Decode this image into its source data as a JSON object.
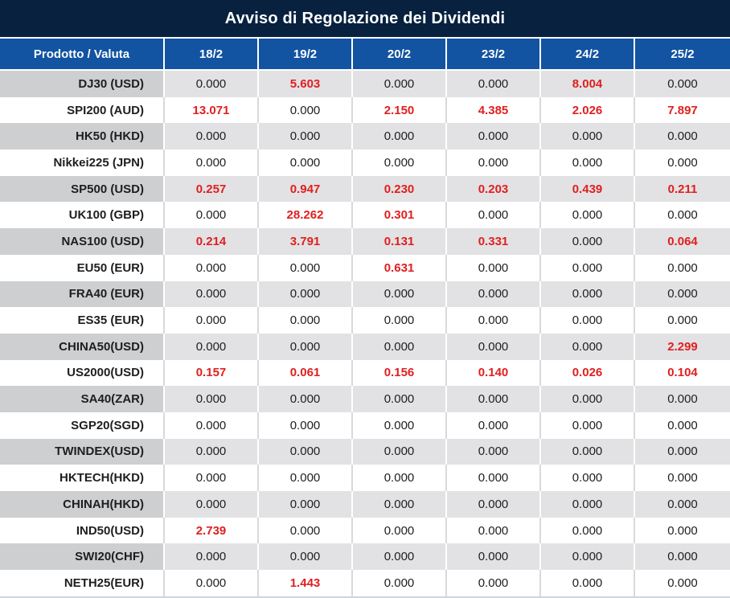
{
  "title": "Avviso di Regolazione dei Dividendi",
  "colors": {
    "header_navy": "#07213F",
    "header_blue": "#1254A2",
    "value_red": "#E01F1F",
    "text_dark": "#1E1E1E",
    "row_gray": "#E2E2E4",
    "product_gray": "#CDCFD1",
    "white_row_sep": "#D9D9D9",
    "bottom_line": "#CCD5E0"
  },
  "table": {
    "product_header": "Prodotto / Valuta",
    "date_columns": [
      "18/2",
      "19/2",
      "20/2",
      "23/2",
      "24/2",
      "25/2"
    ],
    "zero_value": "0.000",
    "rows": [
      {
        "product": "DJ30 (USD)",
        "values": [
          "0.000",
          "5.603",
          "0.000",
          "0.000",
          "8.004",
          "0.000"
        ]
      },
      {
        "product": "SPI200 (AUD)",
        "values": [
          "13.071",
          "0.000",
          "2.150",
          "4.385",
          "2.026",
          "7.897"
        ]
      },
      {
        "product": "HK50 (HKD)",
        "values": [
          "0.000",
          "0.000",
          "0.000",
          "0.000",
          "0.000",
          "0.000"
        ]
      },
      {
        "product": "Nikkei225 (JPN)",
        "values": [
          "0.000",
          "0.000",
          "0.000",
          "0.000",
          "0.000",
          "0.000"
        ]
      },
      {
        "product": "SP500 (USD)",
        "values": [
          "0.257",
          "0.947",
          "0.230",
          "0.203",
          "0.439",
          "0.211"
        ]
      },
      {
        "product": "UK100 (GBP)",
        "values": [
          "0.000",
          "28.262",
          "0.301",
          "0.000",
          "0.000",
          "0.000"
        ]
      },
      {
        "product": "NAS100 (USD)",
        "values": [
          "0.214",
          "3.791",
          "0.131",
          "0.331",
          "0.000",
          "0.064"
        ]
      },
      {
        "product": "EU50 (EUR)",
        "values": [
          "0.000",
          "0.000",
          "0.631",
          "0.000",
          "0.000",
          "0.000"
        ]
      },
      {
        "product": "FRA40 (EUR)",
        "values": [
          "0.000",
          "0.000",
          "0.000",
          "0.000",
          "0.000",
          "0.000"
        ]
      },
      {
        "product": "ES35 (EUR)",
        "values": [
          "0.000",
          "0.000",
          "0.000",
          "0.000",
          "0.000",
          "0.000"
        ]
      },
      {
        "product": "CHINA50(USD)",
        "values": [
          "0.000",
          "0.000",
          "0.000",
          "0.000",
          "0.000",
          "2.299"
        ]
      },
      {
        "product": "US2000(USD)",
        "values": [
          "0.157",
          "0.061",
          "0.156",
          "0.140",
          "0.026",
          "0.104"
        ]
      },
      {
        "product": "SA40(ZAR)",
        "values": [
          "0.000",
          "0.000",
          "0.000",
          "0.000",
          "0.000",
          "0.000"
        ]
      },
      {
        "product": "SGP20(SGD)",
        "values": [
          "0.000",
          "0.000",
          "0.000",
          "0.000",
          "0.000",
          "0.000"
        ]
      },
      {
        "product": "TWINDEX(USD)",
        "values": [
          "0.000",
          "0.000",
          "0.000",
          "0.000",
          "0.000",
          "0.000"
        ]
      },
      {
        "product": "HKTECH(HKD)",
        "values": [
          "0.000",
          "0.000",
          "0.000",
          "0.000",
          "0.000",
          "0.000"
        ]
      },
      {
        "product": "CHINAH(HKD)",
        "values": [
          "0.000",
          "0.000",
          "0.000",
          "0.000",
          "0.000",
          "0.000"
        ]
      },
      {
        "product": "IND50(USD)",
        "values": [
          "2.739",
          "0.000",
          "0.000",
          "0.000",
          "0.000",
          "0.000"
        ]
      },
      {
        "product": "SWI20(CHF)",
        "values": [
          "0.000",
          "0.000",
          "0.000",
          "0.000",
          "0.000",
          "0.000"
        ]
      },
      {
        "product": "NETH25(EUR)",
        "values": [
          "0.000",
          "1.443",
          "0.000",
          "0.000",
          "0.000",
          "0.000"
        ]
      }
    ]
  }
}
